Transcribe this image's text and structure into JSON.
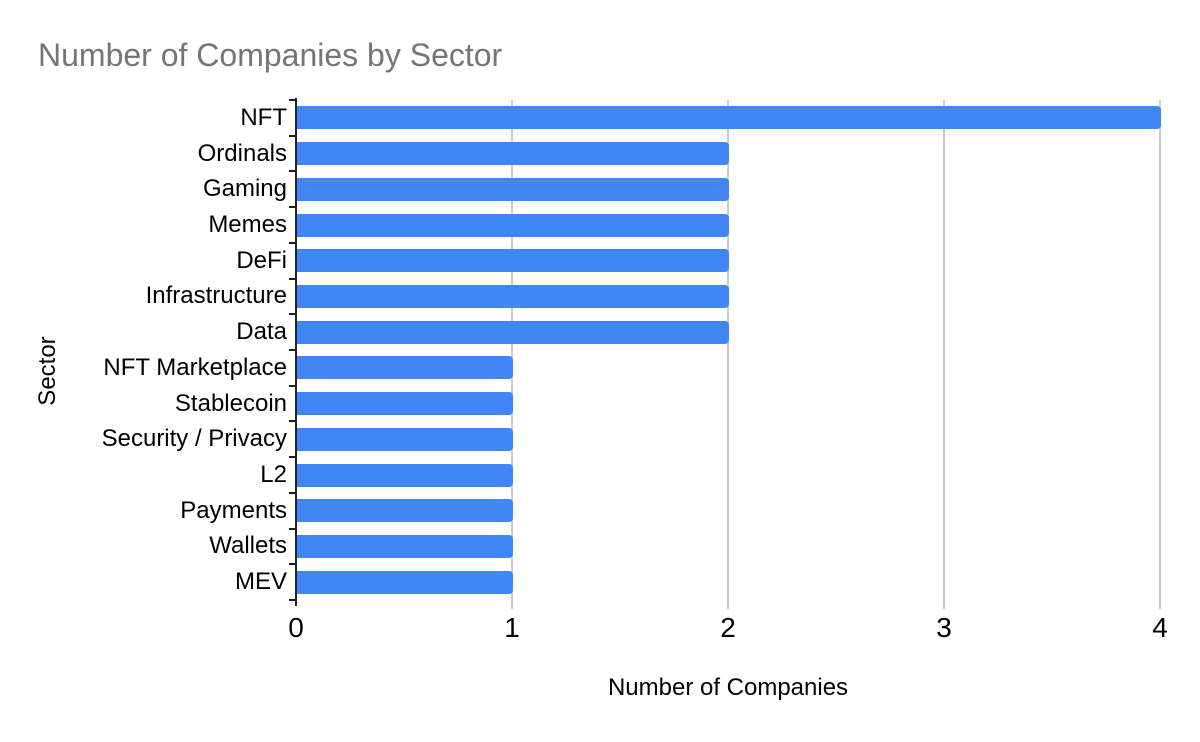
{
  "chart_data": {
    "type": "bar",
    "orientation": "horizontal",
    "title": "Number of Companies by Sector",
    "xlabel": "Number of Companies",
    "ylabel": "Sector",
    "categories": [
      "NFT",
      "Ordinals",
      "Gaming",
      "Memes",
      "DeFi",
      "Infrastructure",
      "Data",
      "NFT Marketplace",
      "Stablecoin",
      "Security / Privacy",
      "L2",
      "Payments",
      "Wallets",
      "MEV"
    ],
    "values": [
      4,
      2,
      2,
      2,
      2,
      2,
      2,
      1,
      1,
      1,
      1,
      1,
      1,
      1
    ],
    "xticks": [
      0,
      1,
      2,
      3,
      4
    ],
    "xlim": [
      0,
      4
    ],
    "grid": true,
    "legend": "none"
  },
  "colors": {
    "bar": "#4285F4",
    "title_text": "#757575",
    "axis_text": "#000000",
    "axis_line": "#212121",
    "gridline": "#cccccc",
    "background": "#ffffff"
  }
}
